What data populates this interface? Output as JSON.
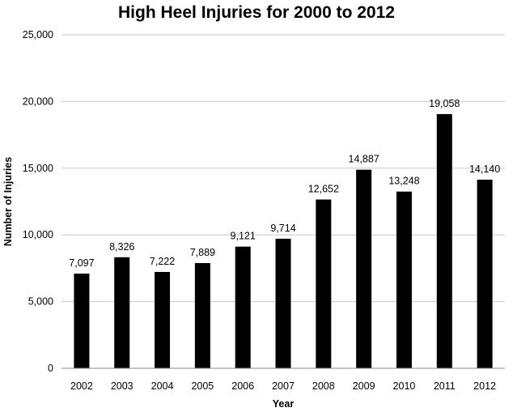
{
  "chart_data": {
    "type": "bar",
    "title": "High Heel Injuries for 2000 to 2012",
    "xlabel": "Year",
    "ylabel": "Number of Injuries",
    "categories": [
      "2002",
      "2003",
      "2004",
      "2005",
      "2006",
      "2007",
      "2008",
      "2009",
      "2010",
      "2011",
      "2012"
    ],
    "values": [
      7097,
      8326,
      7222,
      7889,
      9121,
      9714,
      12652,
      14887,
      13248,
      19058,
      14140
    ],
    "data_labels": [
      "7,097",
      "8,326",
      "7,222",
      "7,889",
      "9,121",
      "9,714",
      "12,652",
      "14,887",
      "13,248",
      "19,058",
      "14,140"
    ],
    "ylim": [
      0,
      25000
    ],
    "y_ticks": [
      0,
      5000,
      10000,
      15000,
      20000,
      25000
    ],
    "y_tick_labels": [
      "0",
      "5,000",
      "10,000",
      "15,000",
      "20,000",
      "25,000"
    ],
    "grid": true,
    "legend": "none",
    "colors": {
      "bar": "#000000",
      "grid": "#c8c8c8",
      "axis": "#8a8a8a"
    }
  }
}
